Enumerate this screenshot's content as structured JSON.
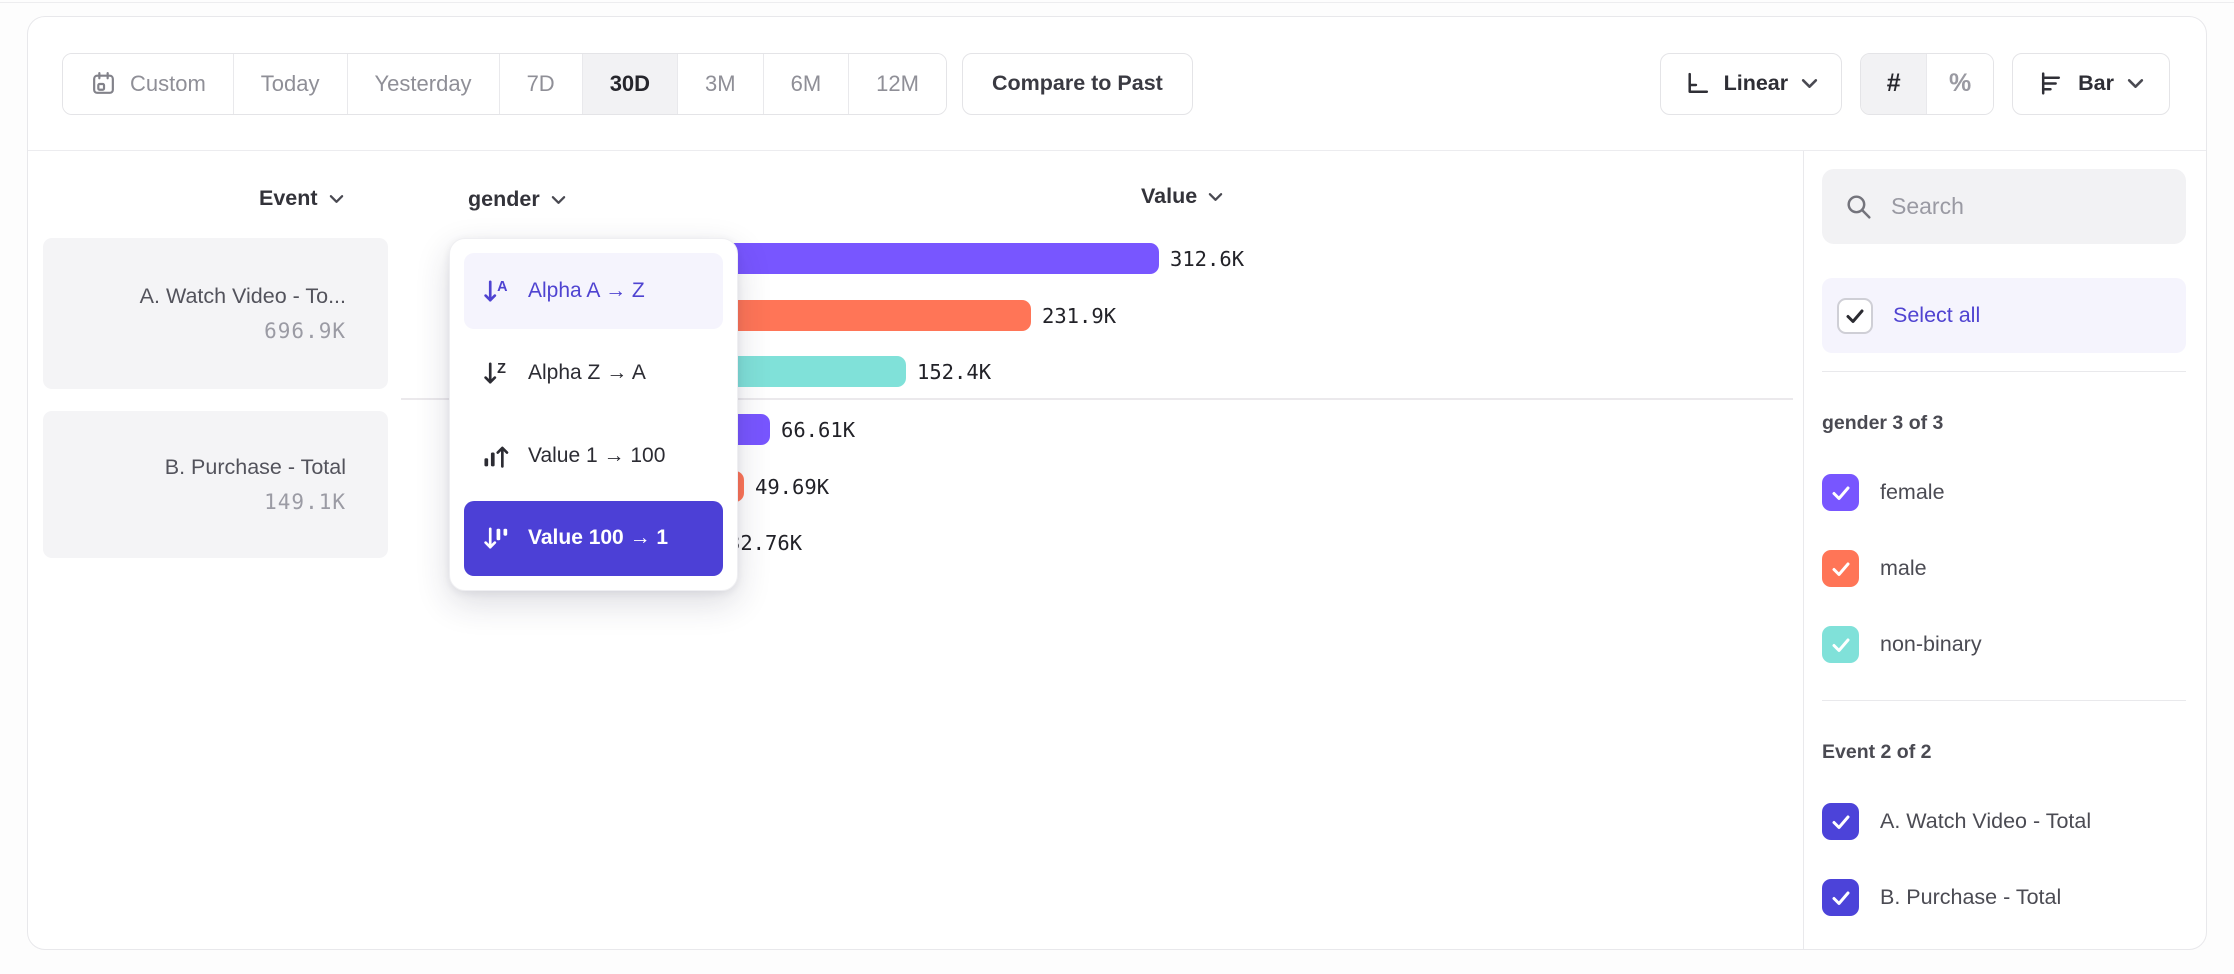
{
  "toolbar": {
    "date_ranges": [
      {
        "label": "Custom",
        "icon": "calendar",
        "selected": false
      },
      {
        "label": "Today",
        "selected": false
      },
      {
        "label": "Yesterday",
        "selected": false
      },
      {
        "label": "7D",
        "selected": false
      },
      {
        "label": "30D",
        "selected": true
      },
      {
        "label": "3M",
        "selected": false
      },
      {
        "label": "6M",
        "selected": false
      },
      {
        "label": "12M",
        "selected": false
      }
    ],
    "compare_label": "Compare to Past",
    "scale_label": "Linear",
    "value_format": {
      "number_symbol": "#",
      "percent_symbol": "%",
      "selected": "#"
    },
    "chart_type_label": "Bar"
  },
  "columns": {
    "event_label": "Event",
    "breakdown_label": "gender",
    "value_label": "Value"
  },
  "event_cards": [
    {
      "name": "A. Watch Video - To...",
      "value": "696.9K"
    },
    {
      "name": "B. Purchase - Total",
      "value": "149.1K"
    }
  ],
  "sort_menu": {
    "items": [
      {
        "label": "Alpha A → Z",
        "icon": "sort-alpha-asc",
        "state": "hover"
      },
      {
        "label": "Alpha Z → A",
        "icon": "sort-alpha-desc",
        "state": "normal"
      },
      {
        "label": "Value 1 → 100",
        "icon": "sort-value-asc",
        "state": "normal"
      },
      {
        "label": "Value 100 → 1",
        "icon": "sort-value-desc",
        "state": "selected"
      }
    ]
  },
  "sidebar": {
    "search_placeholder": "Search",
    "select_all_label": "Select all",
    "groups": [
      {
        "title": "gender 3 of 3",
        "options": [
          {
            "label": "female",
            "checked": true,
            "color": "#7856FF"
          },
          {
            "label": "male",
            "checked": true,
            "color": "#FF7557"
          },
          {
            "label": "non-binary",
            "checked": true,
            "color": "#80E1D9"
          }
        ]
      },
      {
        "title": "Event 2 of 2",
        "options": [
          {
            "label": "A. Watch Video - Total",
            "checked": true,
            "color": "#4C43D9"
          },
          {
            "label": "B. Purchase - Total",
            "checked": true,
            "color": "#4C43D9"
          }
        ]
      }
    ]
  },
  "chart_data": {
    "type": "bar",
    "orientation": "horizontal",
    "value_axis_label": "Value",
    "breakdown": "gender",
    "sort": "Value 100 → 1",
    "date_range": "30D",
    "legend_position": "right-sidebar",
    "groups": [
      {
        "event": "A. Watch Video - Total",
        "total_label": "696.9K",
        "bars": [
          {
            "category": "female",
            "value": 312600,
            "label": "312.6K",
            "color": "#7856FF"
          },
          {
            "category": "male",
            "value": 231900,
            "label": "231.9K",
            "color": "#FF7557"
          },
          {
            "category": "non-binary",
            "value": 152400,
            "label": "152.4K",
            "color": "#80E1D9"
          }
        ]
      },
      {
        "event": "B. Purchase - Total",
        "total_label": "149.1K",
        "bars": [
          {
            "category": "female",
            "value": 66610,
            "label": "66.61K",
            "color": "#7856FF"
          },
          {
            "category": "male",
            "value": 49690,
            "label": "49.69K",
            "color": "#FF7557"
          },
          {
            "category": "non-binary",
            "value": 32760,
            "label": "32.76K",
            "color": "#80E1D9"
          }
        ]
      }
    ]
  }
}
